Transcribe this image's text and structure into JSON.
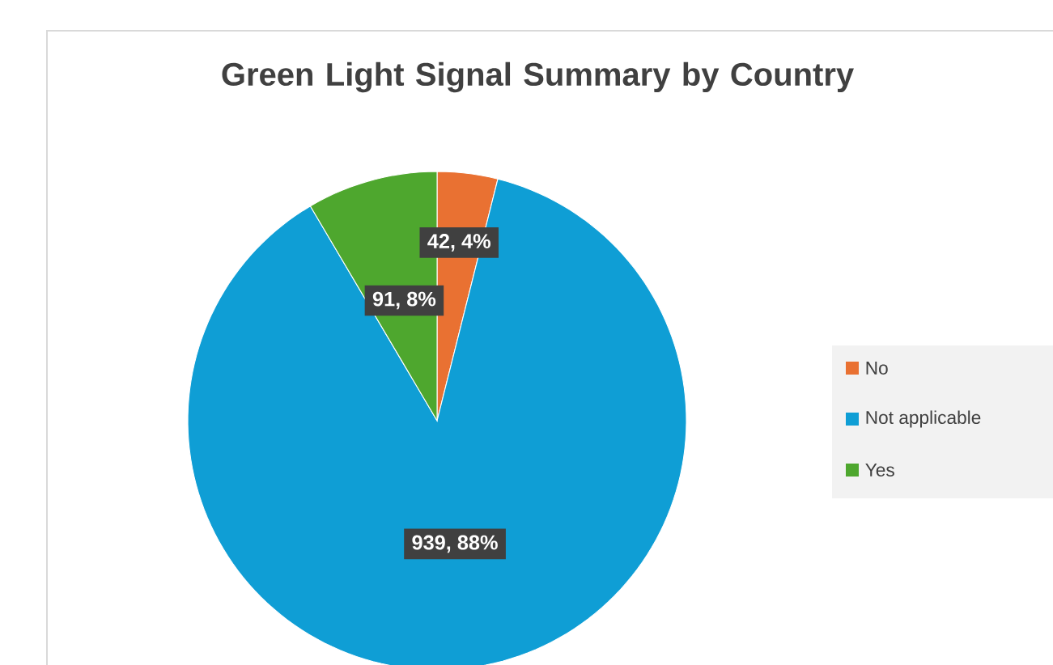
{
  "chart_data": {
    "type": "pie",
    "title": "Green Light Signal Summary by Country",
    "categories": [
      "No",
      "Not applicable",
      "Yes"
    ],
    "values": [
      42,
      939,
      91
    ],
    "colors": [
      "#e97132",
      "#0f9ed5",
      "#4ea72e"
    ],
    "value_labels": [
      "42, 4%",
      "939, 88%",
      "91, 8%"
    ],
    "legend": "right"
  }
}
